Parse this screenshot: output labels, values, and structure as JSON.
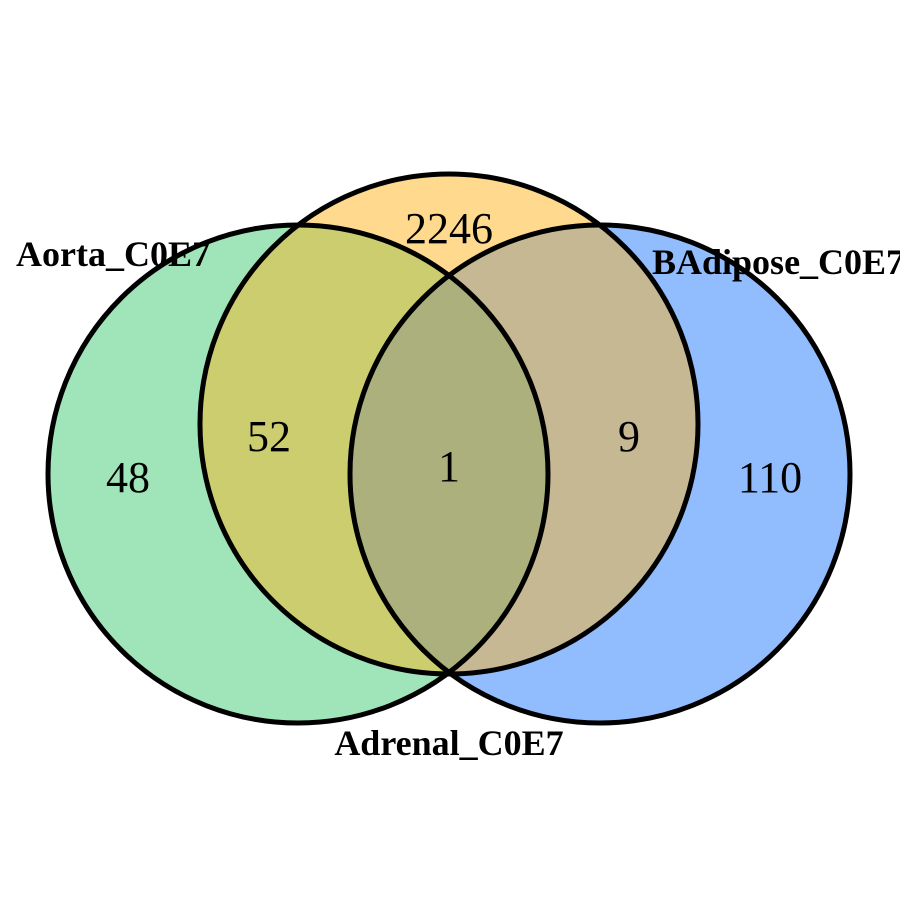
{
  "sets": [
    {
      "key": "aorta",
      "label": "Aorta_C0E7",
      "color": "#a0e4b9"
    },
    {
      "key": "adrenal",
      "label": "Adrenal_C0E7",
      "color": "#fed98e"
    },
    {
      "key": "badipose",
      "label": "BAdipose_C0E7",
      "color": "#91bcfd"
    }
  ],
  "regions": {
    "aorta_only": "48",
    "adrenal_only": "2246",
    "badipose_only": "110",
    "aorta_adrenal": "52",
    "adrenal_badipose": "9",
    "all_three": "1"
  },
  "region_colors": {
    "aorta_adrenal": "#cccd6e",
    "adrenal_badipose": "#c5b892",
    "all_three": "#abb07d"
  }
}
